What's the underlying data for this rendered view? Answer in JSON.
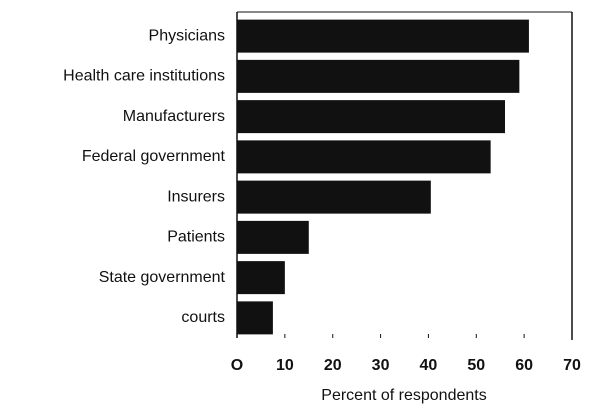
{
  "chart_data": {
    "type": "bar",
    "orientation": "horizontal",
    "categories": [
      "Physicians",
      "Health care institutions",
      "Manufacturers",
      "Federal government",
      "Insurers",
      "Patients",
      "State government",
      "courts"
    ],
    "values": [
      61,
      59,
      56,
      53,
      40.5,
      15,
      10,
      7.5
    ],
    "color": "#111111",
    "xlabel": "Percent of respondents",
    "xlim": [
      0,
      70
    ],
    "xticks": [
      {
        "value": 0,
        "label": "O"
      },
      10,
      20,
      30,
      40,
      50,
      60,
      70
    ],
    "grid": false
  }
}
